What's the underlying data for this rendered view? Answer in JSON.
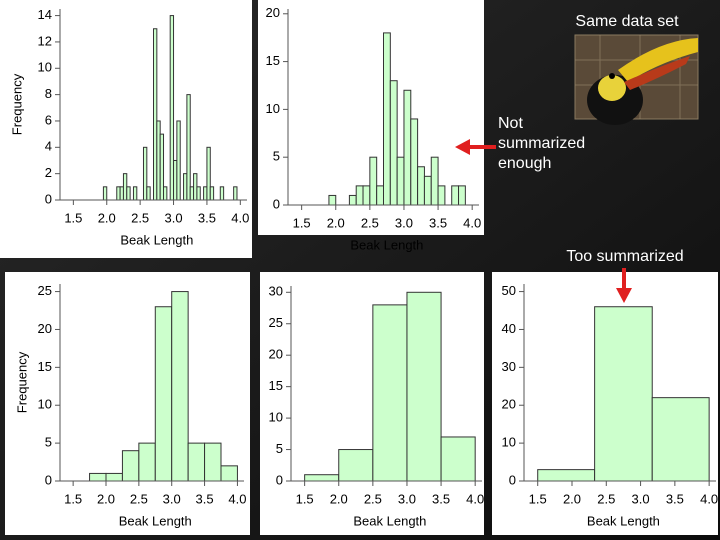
{
  "chart_data": [
    {
      "type": "histogram",
      "x_label": "Beak Length",
      "y_label": "Frequency",
      "color": "#ccffcc",
      "bins": [
        1.9,
        1.95,
        2.0,
        2.05,
        2.1,
        2.15,
        2.2,
        2.25,
        2.3,
        2.35,
        2.4,
        2.45,
        2.5,
        2.55,
        2.6,
        2.65,
        2.7,
        2.75,
        2.8,
        2.85,
        2.9,
        2.95,
        3.0,
        3.05,
        3.1,
        3.15,
        3.2,
        3.25,
        3.3,
        3.35,
        3.4,
        3.45,
        3.5,
        3.55,
        3.6,
        3.65,
        3.7,
        3.75,
        3.8,
        3.85,
        3.9,
        3.95,
        4.0
      ],
      "values": [
        0,
        1,
        0,
        0,
        0,
        1,
        1,
        2,
        1,
        0,
        1,
        0,
        0,
        4,
        1,
        0,
        13,
        6,
        5,
        1,
        0,
        14,
        3,
        6,
        0,
        2,
        8,
        1,
        2,
        1,
        0,
        1,
        4,
        1,
        0,
        0,
        1,
        0,
        0,
        0,
        1,
        0
      ],
      "xlim": [
        1.3,
        4.1
      ],
      "xticks": [
        1.5,
        {
          "value": 2,
          "label": "2.0"
        },
        2.5,
        {
          "value": 3,
          "label": "3.0"
        },
        3.5,
        {
          "value": 4,
          "label": "4.0"
        }
      ],
      "ylim": [
        0,
        14.5
      ],
      "yticks": [
        0,
        2,
        4,
        6,
        8,
        10,
        12,
        14
      ]
    },
    {
      "type": "histogram",
      "x_label": "Beak Length",
      "color": "#ccffcc",
      "bins": [
        1.9,
        2.0,
        2.1,
        2.2,
        2.3,
        2.4,
        2.5,
        2.6,
        2.7,
        2.8,
        2.9,
        3.0,
        3.1,
        3.2,
        3.3,
        3.4,
        3.5,
        3.6,
        3.7,
        3.8,
        3.9,
        4.0
      ],
      "values": [
        1,
        0,
        0,
        1,
        2,
        2,
        5,
        2,
        18,
        13,
        5,
        12,
        9,
        4,
        3,
        5,
        2,
        0,
        2,
        2,
        0
      ],
      "xlim": [
        1.3,
        4.1
      ],
      "xticks": [
        1.5,
        {
          "value": 2,
          "label": "2.0"
        },
        2.5,
        {
          "value": 3,
          "label": "3.0"
        },
        3.5,
        {
          "value": 4,
          "label": "4.0"
        }
      ],
      "ylim": [
        0,
        20.5
      ],
      "yticks": [
        0,
        5,
        10,
        15,
        20
      ]
    },
    {
      "type": "histogram",
      "x_label": "Beak Length",
      "y_label": "Frequency",
      "color": "#ccffcc",
      "bins": [
        1.75,
        2.0,
        2.25,
        2.5,
        2.75,
        3.0,
        3.25,
        3.5,
        3.75,
        4.0
      ],
      "values": [
        1,
        1,
        4,
        5,
        23,
        25,
        5,
        5,
        2
      ],
      "xlim": [
        1.3,
        4.1
      ],
      "xticks": [
        1.5,
        {
          "value": 2,
          "label": "2.0"
        },
        2.5,
        {
          "value": 3,
          "label": "3.0"
        },
        3.5,
        {
          "value": 4,
          "label": "4.0"
        }
      ],
      "ylim": [
        0,
        26
      ],
      "yticks": [
        0,
        5,
        10,
        15,
        20,
        25
      ]
    },
    {
      "type": "histogram",
      "x_label": "Beak Length",
      "color": "#ccffcc",
      "bins": [
        1.5,
        2.0,
        2.5,
        3.0,
        3.5,
        4.0
      ],
      "values": [
        1,
        5,
        28,
        30,
        7
      ],
      "xlim": [
        1.3,
        4.1
      ],
      "xticks": [
        1.5,
        {
          "value": 2,
          "label": "2.0"
        },
        2.5,
        {
          "value": 3,
          "label": "3.0"
        },
        3.5,
        {
          "value": 4,
          "label": "4.0"
        }
      ],
      "ylim": [
        0,
        31
      ],
      "yticks": [
        0,
        5,
        10,
        15,
        20,
        25,
        30
      ]
    },
    {
      "type": "histogram",
      "x_label": "Beak Length",
      "color": "#ccffcc",
      "bins": [
        1.5,
        2.33,
        3.17,
        4.0
      ],
      "values": [
        3,
        46,
        22
      ],
      "xlim": [
        1.3,
        4.1
      ],
      "xticks": [
        1.5,
        {
          "value": 2,
          "label": "2.0"
        },
        2.5,
        {
          "value": 3,
          "label": "3.0"
        },
        3.5,
        {
          "value": 4,
          "label": "4.0"
        }
      ],
      "ylim": [
        0,
        52
      ],
      "yticks": [
        0,
        10,
        20,
        30,
        40,
        50
      ]
    }
  ],
  "annotations": [
    "Same data set",
    "Not summarized enough",
    "Too summarized"
  ]
}
